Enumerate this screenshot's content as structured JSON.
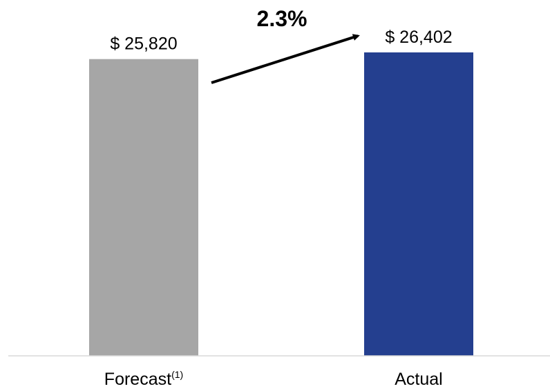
{
  "chart_data": {
    "type": "bar",
    "categories": [
      "Forecast",
      "Actual"
    ],
    "category_footnotes": [
      "(1)",
      ""
    ],
    "values": [
      25820,
      26402
    ],
    "data_labels": [
      "$ 25,820",
      "$ 26,402"
    ],
    "bar_colors": [
      "#a6a6a6",
      "#243f8f"
    ],
    "change_label": "2.3%",
    "ylim": [
      0,
      26402
    ],
    "title": "",
    "xlabel": "",
    "ylabel": "",
    "grid": false,
    "legend": "none",
    "annotation": "arrow from Forecast label to Actual label"
  }
}
